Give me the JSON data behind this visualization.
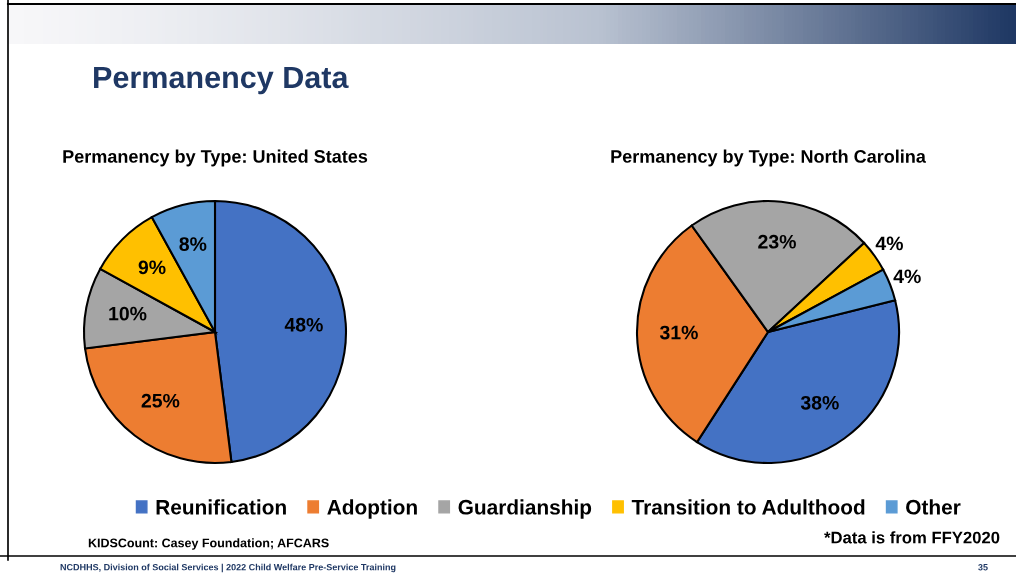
{
  "chart_data": [
    {
      "type": "pie",
      "title": "Permanency by Type: United States",
      "categories": [
        "Reunification",
        "Adoption",
        "Guardianship",
        "Transition to Adulthood",
        "Other"
      ],
      "values": [
        48,
        25,
        10,
        9,
        8
      ],
      "value_labels": [
        "48%",
        "25%",
        "10%",
        "9%",
        "8%"
      ],
      "colors": [
        "#4472c4",
        "#ed7d31",
        "#a5a5a5",
        "#ffc000",
        "#5b9bd5"
      ],
      "legend": "bottom",
      "annotations": [
        "Permanency Data",
        "KIDSCount: Casey Foundation; AFCARS",
        "*Data is from FFY2020",
        "NCDHHS, Division of Social Services | 2022 Child Welfare Pre-Service Training",
        "35"
      ]
    },
    {
      "type": "pie",
      "title": "Permanency by Type: North Carolina",
      "values": [
        38,
        31,
        23,
        4,
        4
      ],
      "value_labels": [
        "38%",
        "31%",
        "23%",
        "4%",
        "4%"
      ],
      "colors": [
        "#4472c4",
        "#ed7d31",
        "#a5a5a5",
        "#ffc000",
        "#5b9bd5"
      ]
    }
  ]
}
